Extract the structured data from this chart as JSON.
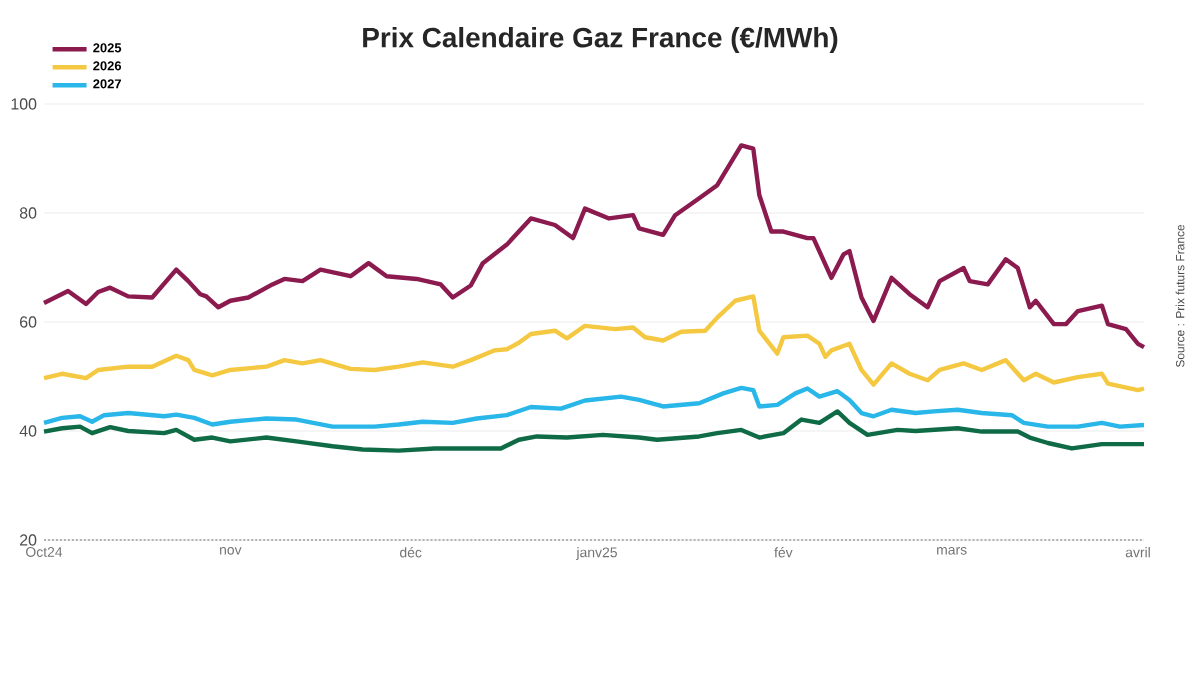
{
  "chart_data": {
    "type": "line",
    "title": "Prix Calendaire Gaz France (€/MWh)",
    "annotations": [
      "Source : Prix futurs France"
    ],
    "xlim": [
      "2024-10-01",
      "2025-04-02"
    ],
    "xticks": [
      {
        "value": "2024-10-01",
        "label": "Oct24"
      },
      {
        "value": "2024-11-01",
        "label": "nov"
      },
      {
        "value": "2024-12-01",
        "label": "déc"
      },
      {
        "value": "2025-01-01",
        "label": "janv25"
      },
      {
        "value": "2025-02-01",
        "label": "fév"
      },
      {
        "value": "2025-03-01",
        "label": "mars"
      },
      {
        "value": "2025-04-01",
        "label": "avril"
      }
    ],
    "ylim": [
      20,
      100
    ],
    "yticks": [
      20,
      40,
      60,
      80,
      100
    ],
    "grid": "y",
    "legend": "top left",
    "series": [
      {
        "name": "2025",
        "color": "#8b1a4f",
        "x": [
          "2024-10-01",
          "2024-10-05",
          "2024-10-08",
          "2024-10-10",
          "2024-10-12",
          "2024-10-15",
          "2024-10-19",
          "2024-10-23",
          "2024-10-25",
          "2024-10-27",
          "2024-10-28",
          "2024-10-30",
          "2024-11-01",
          "2024-11-04",
          "2024-11-08",
          "2024-11-10",
          "2024-11-13",
          "2024-11-16",
          "2024-11-21",
          "2024-11-24",
          "2024-11-27",
          "2024-12-02",
          "2024-12-06",
          "2024-12-08",
          "2024-12-11",
          "2024-12-13",
          "2024-12-17",
          "2024-12-21",
          "2024-12-25",
          "2024-12-28",
          "2024-12-30",
          "2025-01-03",
          "2025-01-07",
          "2025-01-08",
          "2025-01-12",
          "2025-01-14",
          "2025-01-18",
          "2025-01-21",
          "2025-01-25",
          "2025-01-27",
          "2025-01-28",
          "2025-01-30",
          "2025-02-01",
          "2025-02-05",
          "2025-02-06",
          "2025-02-09",
          "2025-02-11",
          "2025-02-12",
          "2025-02-14",
          "2025-02-16",
          "2025-02-19",
          "2025-02-22",
          "2025-02-25",
          "2025-02-27",
          "2025-03-03",
          "2025-03-04",
          "2025-03-07",
          "2025-03-10",
          "2025-03-12",
          "2025-03-14",
          "2025-03-15",
          "2025-03-18",
          "2025-03-20",
          "2025-03-22",
          "2025-03-26",
          "2025-03-27",
          "2025-03-30",
          "2025-04-01",
          "2025-04-02"
        ],
        "values": [
          63.5,
          65.7,
          63.3,
          65.5,
          66.3,
          64.7,
          64.5,
          69.6,
          67.5,
          65.1,
          64.7,
          62.7,
          63.9,
          64.5,
          66.9,
          67.9,
          67.5,
          69.6,
          68.4,
          70.8,
          68.4,
          67.9,
          66.9,
          64.5,
          66.7,
          70.8,
          74.2,
          79,
          77.8,
          75.4,
          80.8,
          79,
          79.6,
          77.2,
          76,
          79.6,
          82.7,
          85.1,
          92.4,
          91.8,
          83.3,
          76.6,
          76.6,
          75.4,
          75.4,
          68.1,
          72.4,
          73,
          64.5,
          60.2,
          68.1,
          65.1,
          62.7,
          67.5,
          69.9,
          67.5,
          66.9,
          71.5,
          69.9,
          62.7,
          63.9,
          59.6,
          59.6,
          62,
          63,
          59.6,
          58.7,
          56,
          55.4
        ]
      },
      {
        "name": "2026",
        "color": "#f5c842",
        "x": [
          "2024-10-01",
          "2024-10-04",
          "2024-10-08",
          "2024-10-10",
          "2024-10-15",
          "2024-10-19",
          "2024-10-23",
          "2024-10-25",
          "2024-10-26",
          "2024-10-29",
          "2024-11-01",
          "2024-11-07",
          "2024-11-10",
          "2024-11-13",
          "2024-11-16",
          "2024-11-21",
          "2024-11-25",
          "2024-11-29",
          "2024-12-03",
          "2024-12-08",
          "2024-12-11",
          "2024-12-15",
          "2024-12-17",
          "2024-12-19",
          "2024-12-21",
          "2024-12-25",
          "2024-12-27",
          "2024-12-30",
          "2025-01-04",
          "2025-01-07",
          "2025-01-09",
          "2025-01-12",
          "2025-01-15",
          "2025-01-19",
          "2025-01-21",
          "2025-01-24",
          "2025-01-27",
          "2025-01-28",
          "2025-01-31",
          "2025-02-01",
          "2025-02-05",
          "2025-02-07",
          "2025-02-08",
          "2025-02-09",
          "2025-02-12",
          "2025-02-14",
          "2025-02-16",
          "2025-02-19",
          "2025-02-22",
          "2025-02-25",
          "2025-02-27",
          "2025-03-03",
          "2025-03-06",
          "2025-03-10",
          "2025-03-13",
          "2025-03-15",
          "2025-03-18",
          "2025-03-22",
          "2025-03-26",
          "2025-03-27",
          "2025-04-01",
          "2025-04-02"
        ],
        "values": [
          49.7,
          50.5,
          49.7,
          51.2,
          51.8,
          51.8,
          53.8,
          53,
          51.2,
          50.2,
          51.2,
          51.8,
          53,
          52.4,
          53,
          51.4,
          51.2,
          51.8,
          52.6,
          51.8,
          53,
          54.8,
          55,
          56.2,
          57.8,
          58.4,
          57,
          59.3,
          58.7,
          59,
          57.2,
          56.6,
          58.2,
          58.4,
          60.8,
          63.9,
          64.7,
          58.4,
          54.2,
          57.2,
          57.5,
          56,
          53.6,
          54.8,
          56,
          51.2,
          48.5,
          52.4,
          50.5,
          49.3,
          51.2,
          52.4,
          51.2,
          53,
          49.3,
          50.5,
          48.9,
          49.9,
          50.5,
          48.7,
          47.5,
          47.8
        ]
      },
      {
        "name": "2027",
        "color": "#29b6e8",
        "x": [
          "2024-10-01",
          "2024-10-04",
          "2024-10-07",
          "2024-10-09",
          "2024-10-11",
          "2024-10-15",
          "2024-10-21",
          "2024-10-23",
          "2024-10-26",
          "2024-10-29",
          "2024-11-01",
          "2024-11-07",
          "2024-11-12",
          "2024-11-18",
          "2024-11-25",
          "2024-11-29",
          "2024-12-03",
          "2024-12-08",
          "2024-12-12",
          "2024-12-17",
          "2024-12-21",
          "2024-12-26",
          "2024-12-30",
          "2025-01-05",
          "2025-01-08",
          "2025-01-12",
          "2025-01-18",
          "2025-01-22",
          "2025-01-25",
          "2025-01-27",
          "2025-01-28",
          "2025-01-31",
          "2025-02-03",
          "2025-02-05",
          "2025-02-07",
          "2025-02-10",
          "2025-02-12",
          "2025-02-14",
          "2025-02-16",
          "2025-02-19",
          "2025-02-23",
          "2025-02-26",
          "2025-03-02",
          "2025-03-06",
          "2025-03-11",
          "2025-03-13",
          "2025-03-17",
          "2025-03-22",
          "2025-03-26",
          "2025-03-29",
          "2025-04-02"
        ],
        "values": [
          41.5,
          42.4,
          42.7,
          41.7,
          42.9,
          43.3,
          42.7,
          43,
          42.4,
          41.2,
          41.7,
          42.3,
          42.1,
          40.8,
          40.8,
          41.2,
          41.7,
          41.5,
          42.3,
          42.9,
          44.4,
          44.1,
          45.6,
          46.3,
          45.7,
          44.5,
          45.1,
          46.9,
          47.9,
          47.5,
          44.5,
          44.8,
          46.9,
          47.8,
          46.3,
          47.3,
          45.7,
          43.3,
          42.7,
          43.9,
          43.3,
          43.6,
          43.9,
          43.3,
          42.9,
          41.5,
          40.8,
          40.8,
          41.5,
          40.8,
          41.1
        ]
      },
      {
        "color": "#0f6b45",
        "x": [
          "2024-10-01",
          "2024-10-04",
          "2024-10-07",
          "2024-10-09",
          "2024-10-12",
          "2024-10-15",
          "2024-10-21",
          "2024-10-23",
          "2024-10-26",
          "2024-10-29",
          "2024-11-01",
          "2024-11-07",
          "2024-11-12",
          "2024-11-18",
          "2024-11-23",
          "2024-11-29",
          "2024-12-05",
          "2024-12-10",
          "2024-12-16",
          "2024-12-19",
          "2024-12-22",
          "2024-12-27",
          "2025-01-02",
          "2025-01-08",
          "2025-01-11",
          "2025-01-18",
          "2025-01-21",
          "2025-01-25",
          "2025-01-28",
          "2025-02-01",
          "2025-02-04",
          "2025-02-07",
          "2025-02-10",
          "2025-02-12",
          "2025-02-15",
          "2025-02-20",
          "2025-02-23",
          "2025-03-02",
          "2025-03-06",
          "2025-03-12",
          "2025-03-14",
          "2025-03-17",
          "2025-03-21",
          "2025-03-26",
          "2025-04-02"
        ],
        "values": [
          39.9,
          40.5,
          40.8,
          39.6,
          40.7,
          40,
          39.6,
          40.2,
          38.4,
          38.8,
          38.1,
          38.8,
          38.1,
          37.2,
          36.6,
          36.4,
          36.8,
          36.8,
          36.8,
          38.4,
          39,
          38.8,
          39.3,
          38.8,
          38.4,
          39,
          39.6,
          40.2,
          38.8,
          39.6,
          42.1,
          41.5,
          43.6,
          41.5,
          39.3,
          40.2,
          40,
          40.5,
          39.9,
          39.9,
          38.8,
          37.8,
          36.8,
          37.6,
          37.6
        ]
      }
    ]
  }
}
